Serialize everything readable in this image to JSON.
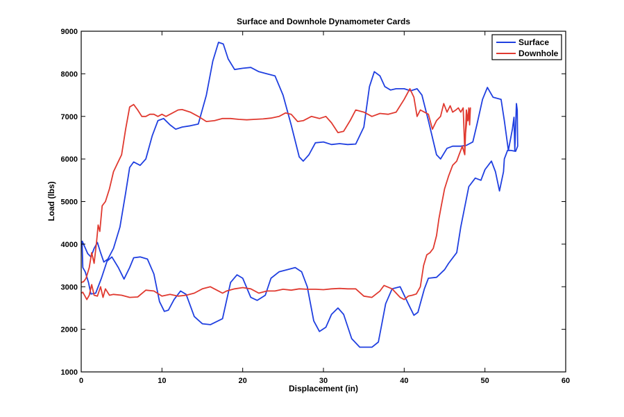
{
  "chart_data": {
    "type": "line",
    "title": "Surface and Downhole Dynamometer Cards",
    "xlabel": "Displacement (in)",
    "ylabel": "Load (lbs)",
    "xlim": [
      0,
      60
    ],
    "ylim": [
      1000,
      9000
    ],
    "xticks": [
      0,
      10,
      20,
      30,
      40,
      50,
      60
    ],
    "yticks": [
      1000,
      2000,
      3000,
      4000,
      5000,
      6000,
      7000,
      8000,
      9000
    ],
    "grid": false,
    "legend_position": "top-right",
    "series": [
      {
        "name": "Surface",
        "color": "#1f3fe0",
        "points": [
          [
            0.1,
            4080
          ],
          [
            0.4,
            3950
          ],
          [
            0.8,
            3780
          ],
          [
            1.2,
            3700
          ],
          [
            1.6,
            3900
          ],
          [
            2.0,
            4040
          ],
          [
            2.4,
            3800
          ],
          [
            2.8,
            3580
          ],
          [
            3.3,
            3650
          ],
          [
            4.0,
            3900
          ],
          [
            4.8,
            4400
          ],
          [
            5.5,
            5200
          ],
          [
            6.0,
            5800
          ],
          [
            6.5,
            5930
          ],
          [
            7.3,
            5850
          ],
          [
            8.0,
            6000
          ],
          [
            8.8,
            6550
          ],
          [
            9.5,
            6900
          ],
          [
            10.2,
            6950
          ],
          [
            11.0,
            6800
          ],
          [
            11.7,
            6700
          ],
          [
            12.5,
            6750
          ],
          [
            13.5,
            6780
          ],
          [
            14.5,
            6820
          ],
          [
            15.5,
            7500
          ],
          [
            16.3,
            8300
          ],
          [
            17.0,
            8740
          ],
          [
            17.6,
            8700
          ],
          [
            18.2,
            8350
          ],
          [
            19.0,
            8100
          ],
          [
            20.0,
            8130
          ],
          [
            21.0,
            8150
          ],
          [
            22.0,
            8050
          ],
          [
            23.0,
            8000
          ],
          [
            24.0,
            7950
          ],
          [
            25.0,
            7500
          ],
          [
            26.0,
            6800
          ],
          [
            27.0,
            6050
          ],
          [
            27.5,
            5950
          ],
          [
            28.2,
            6100
          ],
          [
            29.0,
            6380
          ],
          [
            30.0,
            6400
          ],
          [
            31.0,
            6340
          ],
          [
            32.0,
            6360
          ],
          [
            33.0,
            6340
          ],
          [
            34.0,
            6350
          ],
          [
            35.0,
            6750
          ],
          [
            35.7,
            7700
          ],
          [
            36.3,
            8050
          ],
          [
            37.0,
            7950
          ],
          [
            37.6,
            7700
          ],
          [
            38.3,
            7620
          ],
          [
            39.0,
            7650
          ],
          [
            40.0,
            7650
          ],
          [
            40.8,
            7600
          ],
          [
            41.6,
            7650
          ],
          [
            42.2,
            7500
          ],
          [
            43.0,
            6900
          ],
          [
            44.0,
            6100
          ],
          [
            44.5,
            6000
          ],
          [
            45.3,
            6250
          ],
          [
            46.0,
            6300
          ],
          [
            47.0,
            6300
          ],
          [
            47.7,
            6320
          ],
          [
            48.5,
            6400
          ],
          [
            49.0,
            6800
          ],
          [
            49.7,
            7400
          ],
          [
            50.3,
            7680
          ],
          [
            51.0,
            7450
          ],
          [
            52.0,
            7400
          ],
          [
            52.4,
            6900
          ],
          [
            52.9,
            6200
          ],
          [
            53.4,
            6700
          ],
          [
            53.6,
            6980
          ],
          [
            53.7,
            6200
          ],
          [
            53.9,
            7300
          ],
          [
            54.0,
            7150
          ],
          [
            54.05,
            6300
          ],
          [
            53.8,
            6180
          ],
          [
            53.2,
            6200
          ],
          [
            52.8,
            6200
          ],
          [
            52.4,
            6000
          ],
          [
            52.3,
            5700
          ],
          [
            51.8,
            5250
          ],
          [
            51.3,
            5700
          ],
          [
            50.8,
            5950
          ],
          [
            50.0,
            5750
          ],
          [
            49.5,
            5500
          ],
          [
            48.8,
            5550
          ],
          [
            48.0,
            5350
          ],
          [
            47.0,
            4400
          ],
          [
            46.5,
            3800
          ],
          [
            45.5,
            3550
          ],
          [
            45.0,
            3400
          ],
          [
            44.0,
            3220
          ],
          [
            43.0,
            3200
          ],
          [
            42.5,
            2950
          ],
          [
            41.7,
            2400
          ],
          [
            41.2,
            2330
          ],
          [
            40.5,
            2600
          ],
          [
            39.5,
            3000
          ],
          [
            38.5,
            2950
          ],
          [
            37.7,
            2600
          ],
          [
            37.2,
            2100
          ],
          [
            36.8,
            1700
          ],
          [
            36.0,
            1580
          ],
          [
            34.5,
            1580
          ],
          [
            33.5,
            1780
          ],
          [
            32.5,
            2350
          ],
          [
            31.8,
            2500
          ],
          [
            31.0,
            2350
          ],
          [
            30.3,
            2050
          ],
          [
            29.5,
            1950
          ],
          [
            28.8,
            2200
          ],
          [
            28.0,
            3000
          ],
          [
            27.3,
            3350
          ],
          [
            26.5,
            3450
          ],
          [
            25.5,
            3400
          ],
          [
            24.5,
            3350
          ],
          [
            23.5,
            3200
          ],
          [
            22.8,
            2800
          ],
          [
            21.8,
            2680
          ],
          [
            21.0,
            2750
          ],
          [
            20.0,
            3200
          ],
          [
            19.3,
            3280
          ],
          [
            18.5,
            3100
          ],
          [
            17.5,
            2250
          ],
          [
            16.0,
            2110
          ],
          [
            15.0,
            2130
          ],
          [
            14.0,
            2300
          ],
          [
            13.0,
            2820
          ],
          [
            12.3,
            2900
          ],
          [
            11.5,
            2700
          ],
          [
            10.8,
            2450
          ],
          [
            10.3,
            2420
          ],
          [
            9.7,
            2650
          ],
          [
            9.0,
            3300
          ],
          [
            8.2,
            3650
          ],
          [
            7.3,
            3700
          ],
          [
            6.5,
            3680
          ],
          [
            6.0,
            3450
          ],
          [
            5.3,
            3180
          ],
          [
            4.6,
            3450
          ],
          [
            3.8,
            3700
          ],
          [
            3.2,
            3600
          ],
          [
            2.5,
            3200
          ],
          [
            1.8,
            2850
          ],
          [
            1.2,
            2830
          ],
          [
            0.9,
            3100
          ],
          [
            0.5,
            3350
          ],
          [
            0.2,
            3450
          ],
          [
            0.1,
            4080
          ]
        ]
      },
      {
        "name": "Downhole",
        "color": "#e0392f",
        "points": [
          [
            0.0,
            3100
          ],
          [
            0.3,
            3120
          ],
          [
            0.6,
            3200
          ],
          [
            1.0,
            3450
          ],
          [
            1.3,
            3800
          ],
          [
            1.6,
            3550
          ],
          [
            1.9,
            4050
          ],
          [
            2.1,
            4450
          ],
          [
            2.3,
            4300
          ],
          [
            2.6,
            4900
          ],
          [
            3.0,
            5000
          ],
          [
            3.5,
            5300
          ],
          [
            4.0,
            5700
          ],
          [
            4.5,
            5900
          ],
          [
            5.0,
            6100
          ],
          [
            5.5,
            6700
          ],
          [
            6.0,
            7220
          ],
          [
            6.5,
            7280
          ],
          [
            7.0,
            7150
          ],
          [
            7.5,
            7000
          ],
          [
            8.0,
            7000
          ],
          [
            8.5,
            7050
          ],
          [
            9.0,
            7050
          ],
          [
            9.5,
            7000
          ],
          [
            10.0,
            7050
          ],
          [
            10.5,
            7000
          ],
          [
            11.0,
            7050
          ],
          [
            12.0,
            7150
          ],
          [
            12.5,
            7160
          ],
          [
            13.5,
            7100
          ],
          [
            14.5,
            7000
          ],
          [
            15.5,
            6880
          ],
          [
            16.5,
            6900
          ],
          [
            17.5,
            6950
          ],
          [
            18.5,
            6950
          ],
          [
            19.5,
            6930
          ],
          [
            20.5,
            6920
          ],
          [
            21.5,
            6930
          ],
          [
            22.5,
            6940
          ],
          [
            23.5,
            6960
          ],
          [
            24.5,
            7000
          ],
          [
            25.3,
            7080
          ],
          [
            26.0,
            7050
          ],
          [
            26.8,
            6880
          ],
          [
            27.5,
            6900
          ],
          [
            28.5,
            7000
          ],
          [
            29.5,
            6950
          ],
          [
            30.3,
            7000
          ],
          [
            31.0,
            6850
          ],
          [
            31.8,
            6620
          ],
          [
            32.5,
            6650
          ],
          [
            33.3,
            6900
          ],
          [
            34.0,
            7150
          ],
          [
            35.0,
            7100
          ],
          [
            36.0,
            7000
          ],
          [
            37.0,
            7070
          ],
          [
            38.0,
            7050
          ],
          [
            39.0,
            7100
          ],
          [
            40.0,
            7400
          ],
          [
            40.7,
            7650
          ],
          [
            41.2,
            7450
          ],
          [
            41.6,
            7000
          ],
          [
            42.0,
            7150
          ],
          [
            42.5,
            7100
          ],
          [
            43.0,
            7050
          ],
          [
            43.5,
            6700
          ],
          [
            44.0,
            6900
          ],
          [
            44.5,
            7000
          ],
          [
            44.9,
            7300
          ],
          [
            45.3,
            7100
          ],
          [
            45.7,
            7250
          ],
          [
            46.0,
            7100
          ],
          [
            46.4,
            7150
          ],
          [
            46.7,
            7200
          ],
          [
            47.0,
            7100
          ],
          [
            47.3,
            7200
          ],
          [
            47.5,
            6200
          ],
          [
            47.7,
            7150
          ],
          [
            47.9,
            6900
          ],
          [
            48.0,
            7200
          ],
          [
            48.1,
            6800
          ],
          [
            48.2,
            7200
          ],
          [
            48.0,
            6950
          ],
          [
            47.8,
            7000
          ],
          [
            47.6,
            6600
          ],
          [
            47.5,
            6100
          ],
          [
            47.2,
            6300
          ],
          [
            46.8,
            6100
          ],
          [
            46.5,
            5950
          ],
          [
            46.0,
            5850
          ],
          [
            45.5,
            5600
          ],
          [
            45.0,
            5300
          ],
          [
            44.6,
            4900
          ],
          [
            44.3,
            4600
          ],
          [
            44.0,
            4200
          ],
          [
            43.6,
            3900
          ],
          [
            43.2,
            3800
          ],
          [
            42.8,
            3750
          ],
          [
            42.4,
            3500
          ],
          [
            42.0,
            3000
          ],
          [
            41.5,
            2830
          ],
          [
            41.0,
            2800
          ],
          [
            40.5,
            2780
          ],
          [
            40.0,
            2700
          ],
          [
            39.5,
            2750
          ],
          [
            38.5,
            2950
          ],
          [
            37.5,
            3030
          ],
          [
            37.0,
            2900
          ],
          [
            36.0,
            2750
          ],
          [
            35.0,
            2780
          ],
          [
            34.0,
            2950
          ],
          [
            33.0,
            2950
          ],
          [
            32.0,
            2960
          ],
          [
            31.0,
            2950
          ],
          [
            30.0,
            2930
          ],
          [
            29.0,
            2940
          ],
          [
            28.0,
            2940
          ],
          [
            27.0,
            2950
          ],
          [
            26.0,
            2920
          ],
          [
            25.0,
            2940
          ],
          [
            24.0,
            2900
          ],
          [
            23.0,
            2900
          ],
          [
            22.0,
            2850
          ],
          [
            21.0,
            2950
          ],
          [
            20.0,
            2980
          ],
          [
            19.0,
            2950
          ],
          [
            18.0,
            2900
          ],
          [
            17.5,
            2850
          ],
          [
            17.0,
            2900
          ],
          [
            16.0,
            3000
          ],
          [
            15.0,
            2950
          ],
          [
            14.0,
            2850
          ],
          [
            13.0,
            2800
          ],
          [
            12.0,
            2780
          ],
          [
            11.0,
            2820
          ],
          [
            10.0,
            2780
          ],
          [
            9.0,
            2900
          ],
          [
            8.0,
            2920
          ],
          [
            7.0,
            2760
          ],
          [
            6.0,
            2750
          ],
          [
            5.0,
            2800
          ],
          [
            4.0,
            2820
          ],
          [
            3.5,
            2800
          ],
          [
            3.0,
            2950
          ],
          [
            2.7,
            2750
          ],
          [
            2.4,
            3000
          ],
          [
            2.0,
            2780
          ],
          [
            1.6,
            2800
          ],
          [
            1.3,
            3050
          ],
          [
            1.0,
            2800
          ],
          [
            0.7,
            2700
          ],
          [
            0.4,
            2800
          ],
          [
            0.2,
            2870
          ],
          [
            0.0,
            2850
          ]
        ]
      }
    ]
  }
}
